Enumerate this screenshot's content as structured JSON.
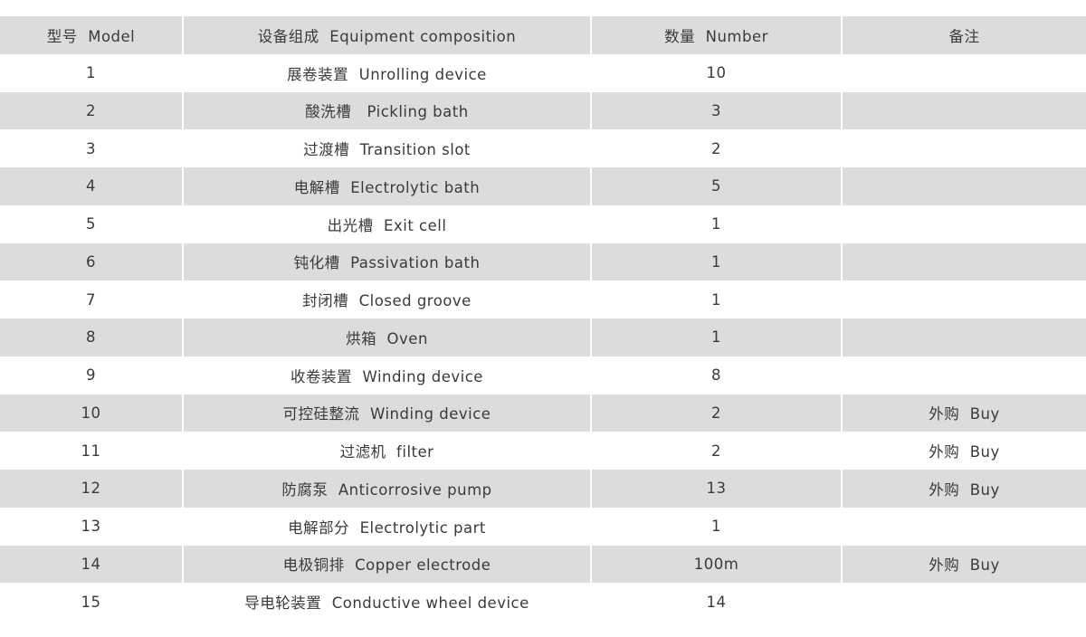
{
  "header": [
    "型号  Model",
    "设备组成  Equipment composition",
    "数量  Number",
    "备注"
  ],
  "rows": [
    {
      "model": "1",
      "composition": "展卷装置  Unrolling device",
      "number": "10",
      "note": ""
    },
    {
      "model": "2",
      "composition": "酸洗槽   Pickling bath",
      "number": "3",
      "note": ""
    },
    {
      "model": "3",
      "composition": "过渡槽  Transition slot",
      "number": "2",
      "note": ""
    },
    {
      "model": "4",
      "composition": "电解槽  Electrolytic bath",
      "number": "5",
      "note": ""
    },
    {
      "model": "5",
      "composition": "出光槽  Exit cell",
      "number": "1",
      "note": ""
    },
    {
      "model": "6",
      "composition": "钝化槽  Passivation bath",
      "number": "1",
      "note": ""
    },
    {
      "model": "7",
      "composition": "封闭槽  Closed groove",
      "number": "1",
      "note": ""
    },
    {
      "model": "8",
      "composition": "烘箱  Oven",
      "number": "1",
      "note": ""
    },
    {
      "model": "9",
      "composition": "收卷装置  Winding device",
      "number": "8",
      "note": ""
    },
    {
      "model": "10",
      "composition": "可控硅整流  Winding device",
      "number": "2",
      "note": "外购  Buy"
    },
    {
      "model": "11",
      "composition": "过滤机  filter",
      "number": "2",
      "note": "外购  Buy"
    },
    {
      "model": "12",
      "composition": "防腐泵  Anticorrosive pump",
      "number": "13",
      "note": "外购  Buy"
    },
    {
      "model": "13",
      "composition": "电解部分  Electrolytic part",
      "number": "1",
      "note": ""
    },
    {
      "model": "14",
      "composition": "电极铜排  Copper electrode",
      "number": "100m",
      "note": "外购  Buy"
    },
    {
      "model": "15",
      "composition": "导电轮装置  Conductive wheel device",
      "number": "14",
      "note": ""
    }
  ],
  "colors": {
    "stripe": "#dcdcdd",
    "text": "#3a3a3a"
  }
}
